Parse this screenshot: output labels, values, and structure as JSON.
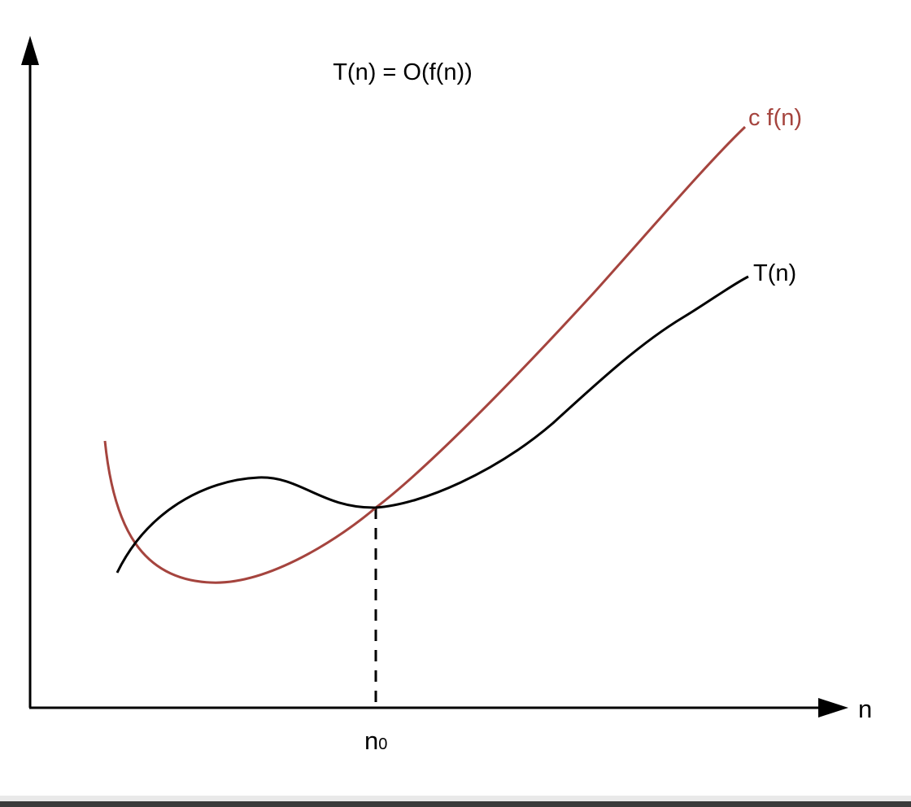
{
  "diagram": {
    "title": "T(n) = O(f(n))",
    "x_axis_label": "n",
    "threshold_label": "n",
    "threshold_subscript": "0",
    "upper_curve_label": "c f(n)",
    "lower_curve_label": "T(n)"
  },
  "colors": {
    "upper_curve": "#a5443e",
    "lower_curve": "#000000",
    "axes": "#000000"
  }
}
